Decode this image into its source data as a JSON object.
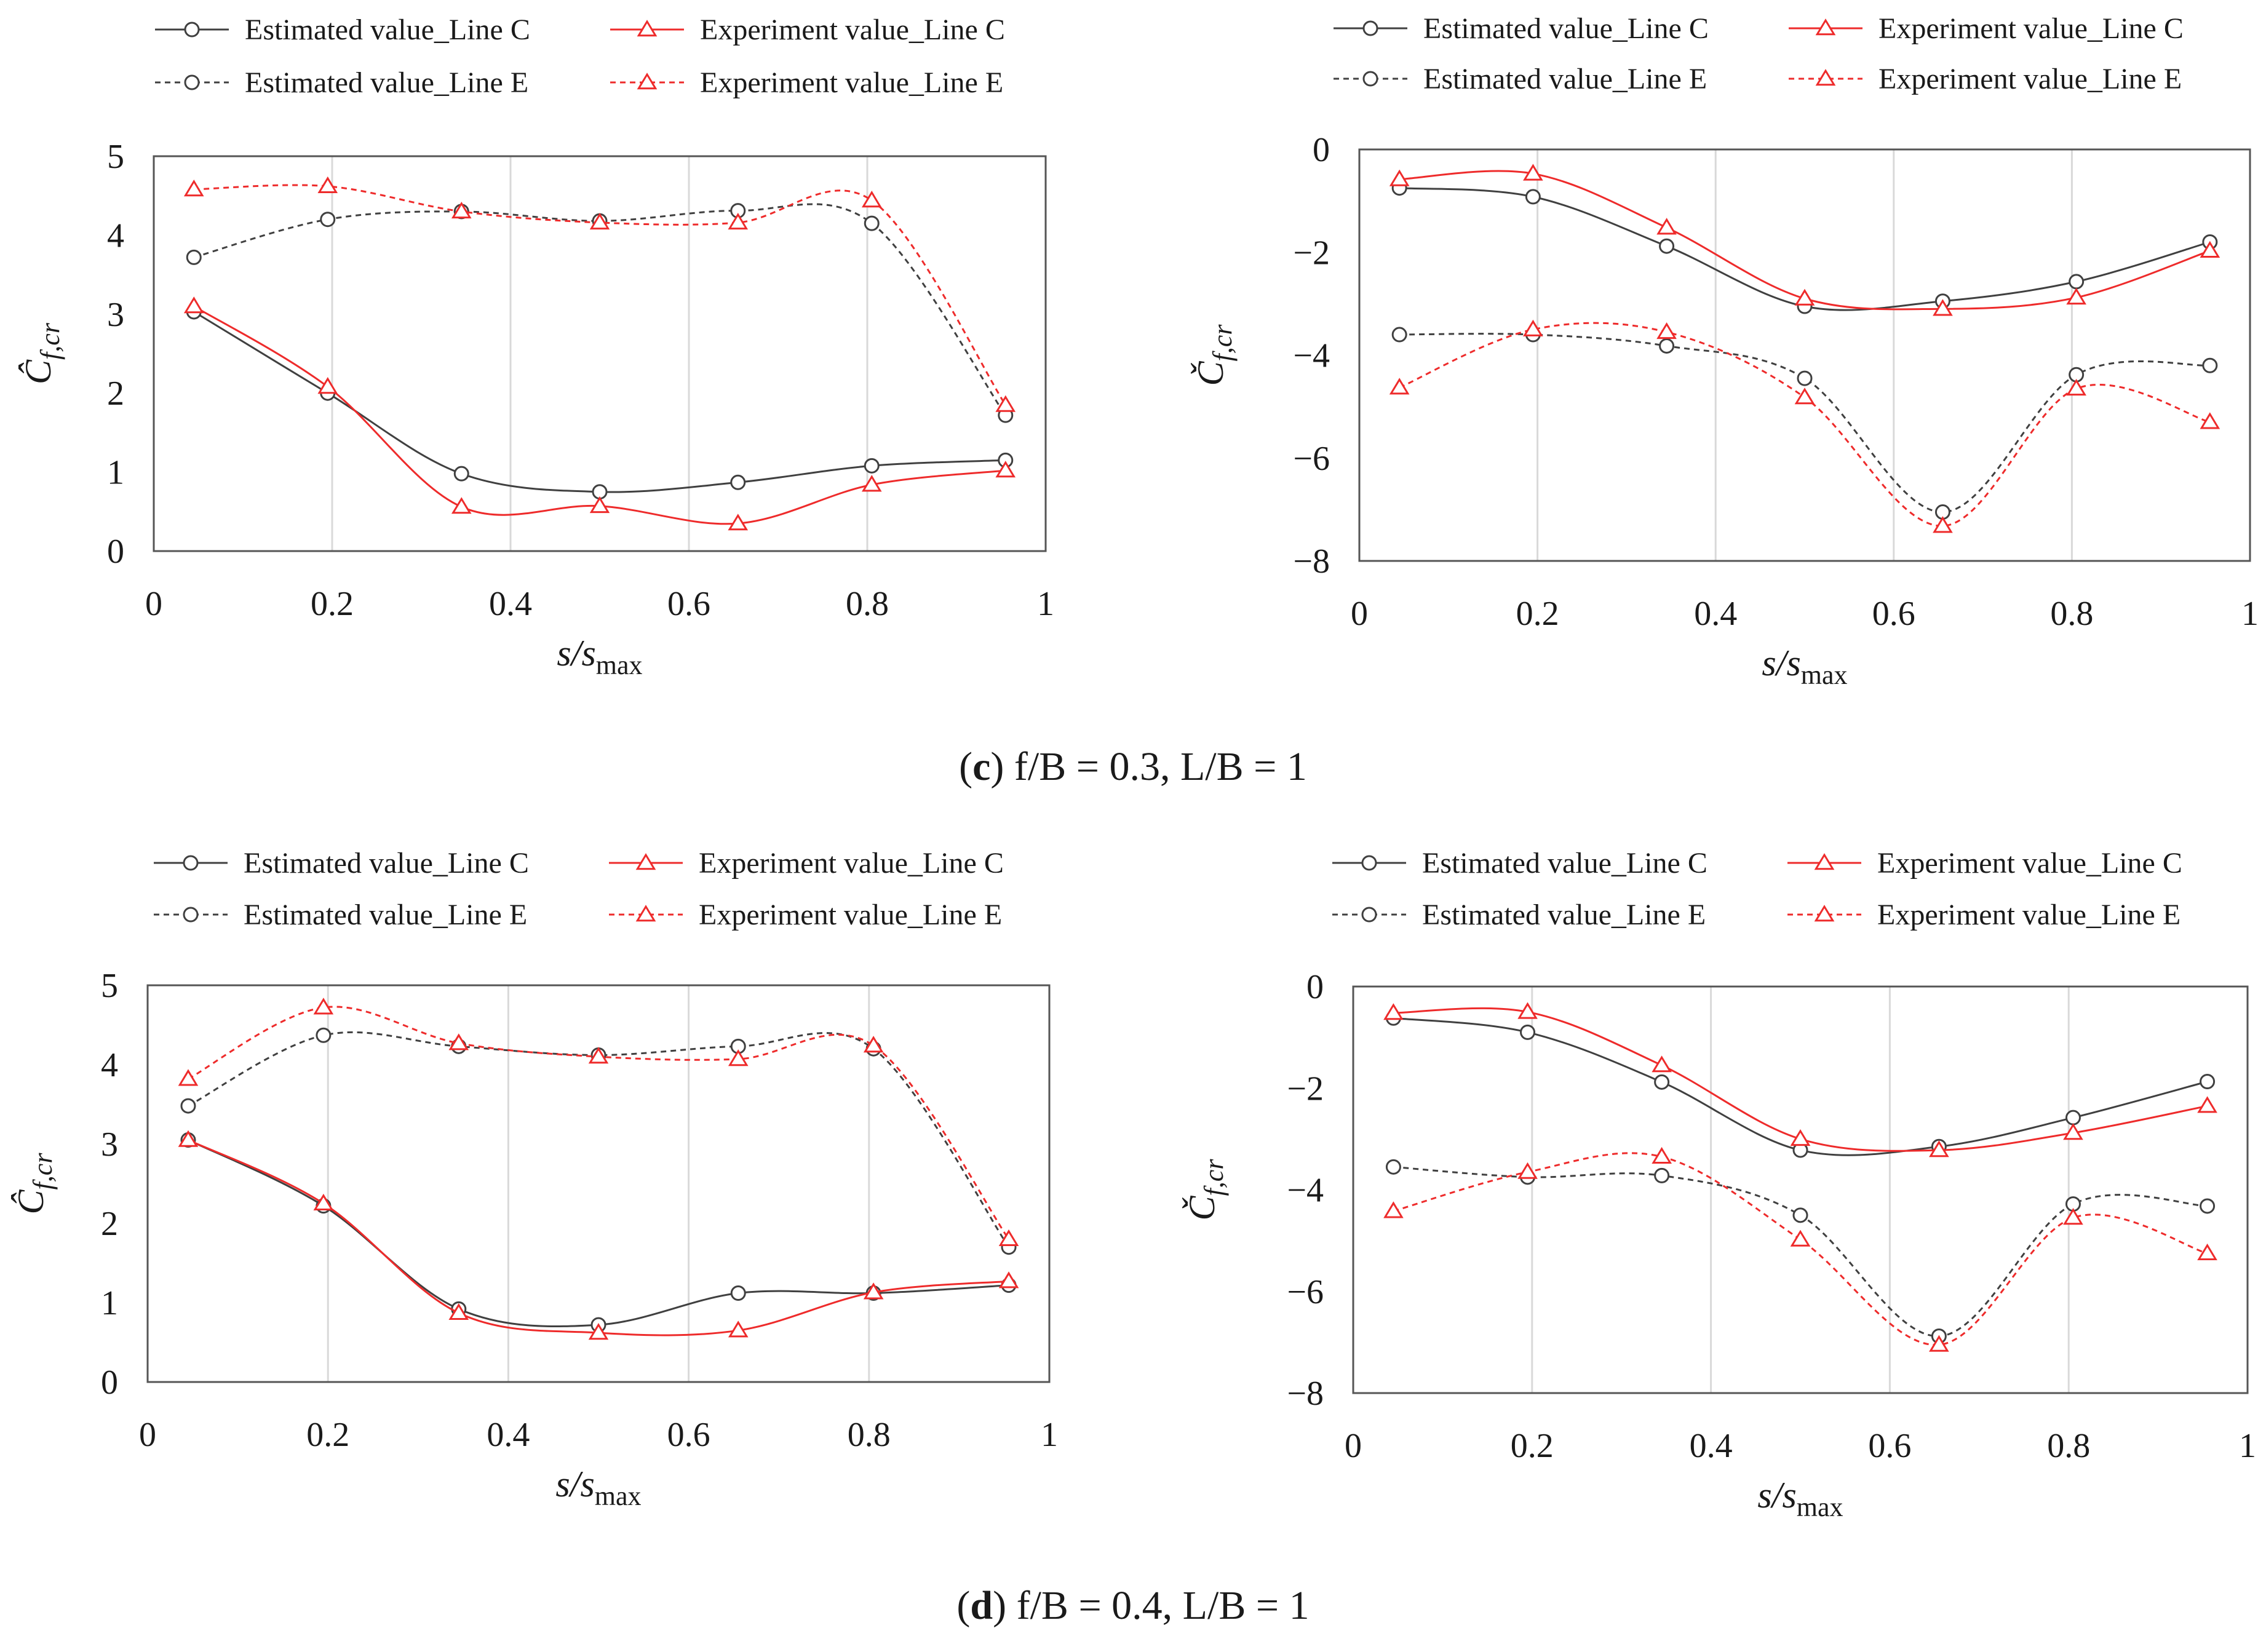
{
  "figure": {
    "captions": [
      {
        "label": "c",
        "text": " f/B = 0.3, L/B = 1"
      },
      {
        "label": "d",
        "text": " f/B = 0.4, L/B = 1"
      }
    ]
  },
  "colors": {
    "estimated": "#404040",
    "experiment": "#ee2b2b",
    "grid": "#d9d9d9",
    "frame": "#555555"
  },
  "chart_data": [
    {
      "id": "c-left",
      "type": "line",
      "xlabel": {
        "main": "s/s",
        "sub": "max"
      },
      "ylabel": {
        "main": "Ĉ",
        "sub": "f,cr"
      },
      "xlim": [
        0,
        1
      ],
      "ylim": [
        0,
        5
      ],
      "xticks": [
        0,
        0.2,
        0.4,
        0.6,
        0.8,
        1
      ],
      "xtick_labels": [
        "0",
        "0.2",
        "0.4",
        "0.6",
        "0.8",
        "1"
      ],
      "yticks": [
        0,
        1,
        2,
        3,
        4,
        5
      ],
      "ytick_labels": [
        "0",
        "1",
        "2",
        "3",
        "4",
        "5"
      ],
      "grid": "vertical",
      "legend": "top",
      "x": [
        0.045,
        0.195,
        0.345,
        0.5,
        0.655,
        0.805,
        0.955
      ],
      "series": [
        {
          "name": "Estimated value_Line C",
          "color": "#404040",
          "dash": "solid",
          "marker": "circle",
          "values": [
            3.03,
            2.0,
            0.98,
            0.75,
            0.87,
            1.08,
            1.15
          ]
        },
        {
          "name": "Experiment value_Line C",
          "color": "#ee2b2b",
          "dash": "solid",
          "marker": "triangle",
          "values": [
            3.1,
            2.08,
            0.56,
            0.57,
            0.35,
            0.84,
            1.02
          ]
        },
        {
          "name": "Estimated value_Line E",
          "color": "#404040",
          "dash": "dashed",
          "marker": "circle",
          "values": [
            3.72,
            4.2,
            4.3,
            4.18,
            4.31,
            4.15,
            1.72
          ]
        },
        {
          "name": "Experiment value_Line E",
          "color": "#ee2b2b",
          "dash": "dashed",
          "marker": "triangle",
          "values": [
            4.58,
            4.62,
            4.3,
            4.16,
            4.16,
            4.44,
            1.85
          ]
        }
      ]
    },
    {
      "id": "c-right",
      "type": "line",
      "xlabel": {
        "main": "s/s",
        "sub": "max"
      },
      "ylabel": {
        "main": "Č",
        "sub": "f,cr"
      },
      "xlim": [
        0,
        1
      ],
      "ylim": [
        -8,
        0
      ],
      "xticks": [
        0,
        0.2,
        0.4,
        0.6,
        0.8,
        1
      ],
      "xtick_labels": [
        "0",
        "0.2",
        "0.4",
        "0.6",
        "0.8",
        "1"
      ],
      "yticks": [
        -8,
        -6,
        -4,
        -2,
        0
      ],
      "ytick_labels": [
        "−8",
        "−6",
        "−4",
        "−2",
        "0"
      ],
      "grid": "vertical",
      "legend": "top",
      "x": [
        0.045,
        0.195,
        0.345,
        0.5,
        0.655,
        0.805,
        0.955
      ],
      "series": [
        {
          "name": "Estimated value_Line C",
          "color": "#404040",
          "dash": "solid",
          "marker": "circle",
          "values": [
            -0.75,
            -0.92,
            -1.88,
            -3.05,
            -2.95,
            -2.57,
            -1.8
          ]
        },
        {
          "name": "Experiment value_Line C",
          "color": "#ee2b2b",
          "dash": "solid",
          "marker": "triangle",
          "values": [
            -0.58,
            -0.47,
            -1.52,
            -2.9,
            -3.1,
            -2.88,
            -1.97
          ]
        },
        {
          "name": "Estimated value_Line E",
          "color": "#404040",
          "dash": "dashed",
          "marker": "circle",
          "values": [
            -3.6,
            -3.6,
            -3.82,
            -4.45,
            -7.05,
            -4.38,
            -4.2
          ]
        },
        {
          "name": "Experiment value_Line E",
          "color": "#ee2b2b",
          "dash": "dashed",
          "marker": "triangle",
          "values": [
            -4.63,
            -3.5,
            -3.55,
            -4.82,
            -7.32,
            -4.65,
            -5.3
          ]
        }
      ]
    },
    {
      "id": "d-left",
      "type": "line",
      "xlabel": {
        "main": "s/s",
        "sub": "max"
      },
      "ylabel": {
        "main": "Ĉ",
        "sub": "f,cr"
      },
      "xlim": [
        0,
        1
      ],
      "ylim": [
        0,
        5
      ],
      "xticks": [
        0,
        0.2,
        0.4,
        0.6,
        0.8,
        1
      ],
      "xtick_labels": [
        "0",
        "0.2",
        "0.4",
        "0.6",
        "0.8",
        "1"
      ],
      "yticks": [
        0,
        1,
        2,
        3,
        4,
        5
      ],
      "ytick_labels": [
        "0",
        "1",
        "2",
        "3",
        "4",
        "5"
      ],
      "grid": "vertical",
      "legend": "top",
      "x": [
        0.045,
        0.195,
        0.345,
        0.5,
        0.655,
        0.805,
        0.955
      ],
      "series": [
        {
          "name": "Estimated value_Line C",
          "color": "#404040",
          "dash": "solid",
          "marker": "circle",
          "values": [
            3.05,
            2.22,
            0.92,
            0.72,
            1.12,
            1.12,
            1.22
          ]
        },
        {
          "name": "Experiment value_Line C",
          "color": "#ee2b2b",
          "dash": "solid",
          "marker": "triangle",
          "values": [
            3.05,
            2.25,
            0.87,
            0.62,
            0.65,
            1.13,
            1.27
          ]
        },
        {
          "name": "Estimated value_Line E",
          "color": "#404040",
          "dash": "dashed",
          "marker": "circle",
          "values": [
            3.48,
            4.37,
            4.23,
            4.12,
            4.23,
            4.2,
            1.7
          ]
        },
        {
          "name": "Experiment value_Line E",
          "color": "#ee2b2b",
          "dash": "dashed",
          "marker": "triangle",
          "values": [
            3.82,
            4.72,
            4.27,
            4.1,
            4.07,
            4.24,
            1.8
          ]
        }
      ]
    },
    {
      "id": "d-right",
      "type": "line",
      "xlabel": {
        "main": "s/s",
        "sub": "max"
      },
      "ylabel": {
        "main": "Č",
        "sub": "f,cr"
      },
      "xlim": [
        0,
        1
      ],
      "ylim": [
        -8,
        0
      ],
      "xticks": [
        0,
        0.2,
        0.4,
        0.6,
        0.8,
        1
      ],
      "xtick_labels": [
        "0",
        "0.2",
        "0.4",
        "0.6",
        "0.8",
        "1"
      ],
      "yticks": [
        -8,
        -6,
        -4,
        -2,
        0
      ],
      "ytick_labels": [
        "−8",
        "−6",
        "−4",
        "−2",
        "0"
      ],
      "grid": "vertical",
      "legend": "top",
      "x": [
        0.045,
        0.195,
        0.345,
        0.5,
        0.655,
        0.805,
        0.955
      ],
      "series": [
        {
          "name": "Estimated value_Line C",
          "color": "#404040",
          "dash": "solid",
          "marker": "circle",
          "values": [
            -0.62,
            -0.9,
            -1.88,
            -3.22,
            -3.15,
            -2.58,
            -1.87
          ]
        },
        {
          "name": "Experiment value_Line C",
          "color": "#ee2b2b",
          "dash": "solid",
          "marker": "triangle",
          "values": [
            -0.52,
            -0.5,
            -1.55,
            -3.0,
            -3.22,
            -2.88,
            -2.35
          ]
        },
        {
          "name": "Estimated value_Line E",
          "color": "#404040",
          "dash": "dashed",
          "marker": "circle",
          "values": [
            -3.55,
            -3.75,
            -3.72,
            -4.5,
            -6.88,
            -4.28,
            -4.32
          ]
        },
        {
          "name": "Experiment value_Line E",
          "color": "#ee2b2b",
          "dash": "dashed",
          "marker": "triangle",
          "values": [
            -4.42,
            -3.65,
            -3.35,
            -4.98,
            -7.05,
            -4.55,
            -5.25
          ]
        }
      ]
    }
  ]
}
